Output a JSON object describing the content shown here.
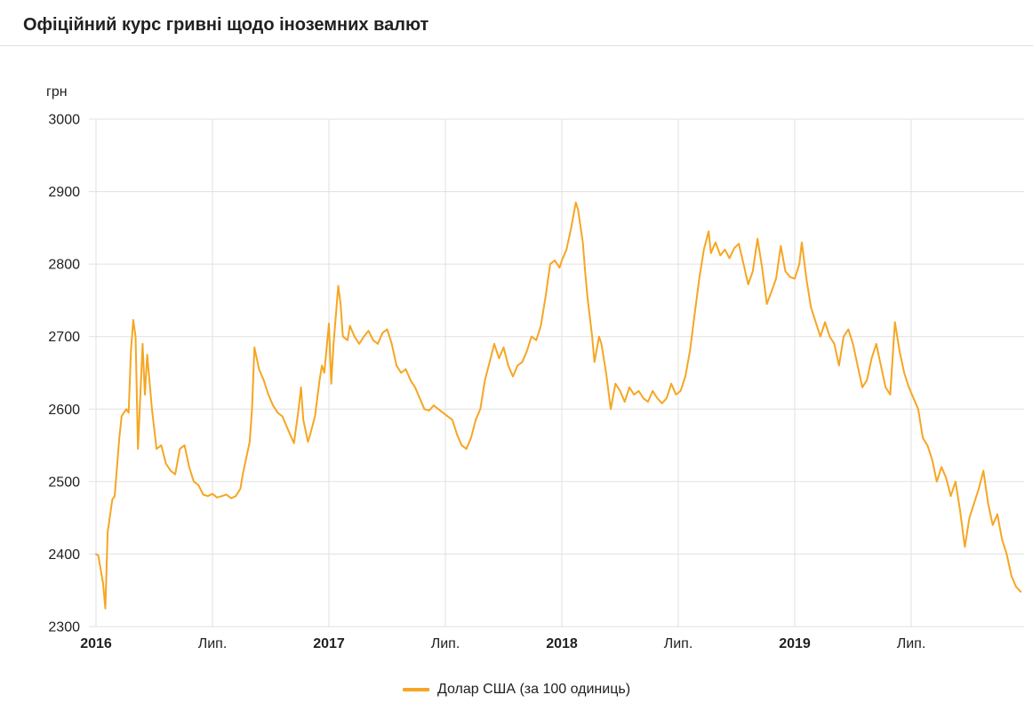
{
  "header": {
    "title": "Офіційний курс гривні щодо іноземних валют"
  },
  "chart_data": {
    "type": "line",
    "title": "Офіційний курс гривні щодо іноземних валют",
    "ylabel": "грн",
    "xlabel": "",
    "ylim": [
      2300,
      3000
    ],
    "xlim": [
      2016,
      2019.97
    ],
    "grid": true,
    "legend_position": "bottom",
    "colors": {
      "grid": "#e0e0e0",
      "axis_text": "#212121",
      "line": "#F6A623"
    },
    "y_ticks": [
      2300,
      2400,
      2500,
      2600,
      2700,
      2800,
      2900,
      3000
    ],
    "x_ticks": [
      {
        "x": 2016,
        "label": "2016",
        "bold": true
      },
      {
        "x": 2016.5,
        "label": "Лип.",
        "bold": false
      },
      {
        "x": 2017,
        "label": "2017",
        "bold": true
      },
      {
        "x": 2017.5,
        "label": "Лип.",
        "bold": false
      },
      {
        "x": 2018,
        "label": "2018",
        "bold": true
      },
      {
        "x": 2018.5,
        "label": "Лип.",
        "bold": false
      },
      {
        "x": 2019,
        "label": "2019",
        "bold": true
      },
      {
        "x": 2019.5,
        "label": "Лип.",
        "bold": false
      }
    ],
    "series": [
      {
        "name": "Долар США (за 100 одиниць)",
        "color": "#F6A623",
        "points": [
          [
            2016.0,
            2400
          ],
          [
            2016.01,
            2398
          ],
          [
            2016.03,
            2360
          ],
          [
            2016.04,
            2325
          ],
          [
            2016.05,
            2430
          ],
          [
            2016.07,
            2475
          ],
          [
            2016.08,
            2480
          ],
          [
            2016.1,
            2560
          ],
          [
            2016.11,
            2590
          ],
          [
            2016.13,
            2600
          ],
          [
            2016.14,
            2595
          ],
          [
            2016.15,
            2680
          ],
          [
            2016.16,
            2723
          ],
          [
            2016.17,
            2700
          ],
          [
            2016.18,
            2545
          ],
          [
            2016.2,
            2690
          ],
          [
            2016.21,
            2620
          ],
          [
            2016.22,
            2675
          ],
          [
            2016.24,
            2600
          ],
          [
            2016.26,
            2545
          ],
          [
            2016.28,
            2550
          ],
          [
            2016.3,
            2525
          ],
          [
            2016.32,
            2515
          ],
          [
            2016.34,
            2510
          ],
          [
            2016.36,
            2545
          ],
          [
            2016.38,
            2550
          ],
          [
            2016.4,
            2520
          ],
          [
            2016.42,
            2500
          ],
          [
            2016.44,
            2495
          ],
          [
            2016.46,
            2482
          ],
          [
            2016.48,
            2480
          ],
          [
            2016.5,
            2483
          ],
          [
            2016.52,
            2478
          ],
          [
            2016.54,
            2480
          ],
          [
            2016.56,
            2482
          ],
          [
            2016.58,
            2477
          ],
          [
            2016.6,
            2480
          ],
          [
            2016.62,
            2490
          ],
          [
            2016.63,
            2510
          ],
          [
            2016.65,
            2540
          ],
          [
            2016.66,
            2555
          ],
          [
            2016.67,
            2600
          ],
          [
            2016.68,
            2685
          ],
          [
            2016.69,
            2670
          ],
          [
            2016.7,
            2655
          ],
          [
            2016.72,
            2640
          ],
          [
            2016.74,
            2620
          ],
          [
            2016.76,
            2605
          ],
          [
            2016.78,
            2595
          ],
          [
            2016.8,
            2590
          ],
          [
            2016.82,
            2575
          ],
          [
            2016.84,
            2560
          ],
          [
            2016.85,
            2553
          ],
          [
            2016.87,
            2600
          ],
          [
            2016.88,
            2630
          ],
          [
            2016.89,
            2585
          ],
          [
            2016.91,
            2555
          ],
          [
            2016.92,
            2565
          ],
          [
            2016.94,
            2590
          ],
          [
            2016.96,
            2640
          ],
          [
            2016.97,
            2660
          ],
          [
            2016.98,
            2650
          ],
          [
            2017.0,
            2718
          ],
          [
            2017.01,
            2635
          ],
          [
            2017.02,
            2690
          ],
          [
            2017.04,
            2770
          ],
          [
            2017.05,
            2745
          ],
          [
            2017.06,
            2700
          ],
          [
            2017.08,
            2695
          ],
          [
            2017.09,
            2715
          ],
          [
            2017.11,
            2700
          ],
          [
            2017.13,
            2690
          ],
          [
            2017.15,
            2700
          ],
          [
            2017.17,
            2708
          ],
          [
            2017.19,
            2695
          ],
          [
            2017.21,
            2690
          ],
          [
            2017.23,
            2705
          ],
          [
            2017.25,
            2710
          ],
          [
            2017.27,
            2690
          ],
          [
            2017.29,
            2660
          ],
          [
            2017.31,
            2650
          ],
          [
            2017.33,
            2655
          ],
          [
            2017.35,
            2640
          ],
          [
            2017.37,
            2630
          ],
          [
            2017.39,
            2615
          ],
          [
            2017.41,
            2600
          ],
          [
            2017.43,
            2598
          ],
          [
            2017.45,
            2605
          ],
          [
            2017.47,
            2600
          ],
          [
            2017.49,
            2595
          ],
          [
            2017.51,
            2590
          ],
          [
            2017.53,
            2585
          ],
          [
            2017.55,
            2565
          ],
          [
            2017.57,
            2550
          ],
          [
            2017.59,
            2545
          ],
          [
            2017.61,
            2560
          ],
          [
            2017.63,
            2585
          ],
          [
            2017.65,
            2600
          ],
          [
            2017.67,
            2640
          ],
          [
            2017.69,
            2665
          ],
          [
            2017.71,
            2690
          ],
          [
            2017.73,
            2670
          ],
          [
            2017.75,
            2685
          ],
          [
            2017.77,
            2660
          ],
          [
            2017.79,
            2645
          ],
          [
            2017.81,
            2660
          ],
          [
            2017.83,
            2665
          ],
          [
            2017.85,
            2680
          ],
          [
            2017.87,
            2700
          ],
          [
            2017.89,
            2695
          ],
          [
            2017.91,
            2715
          ],
          [
            2017.93,
            2755
          ],
          [
            2017.95,
            2800
          ],
          [
            2017.97,
            2805
          ],
          [
            2017.99,
            2795
          ],
          [
            2018.0,
            2805
          ],
          [
            2018.02,
            2820
          ],
          [
            2018.04,
            2850
          ],
          [
            2018.06,
            2885
          ],
          [
            2018.07,
            2875
          ],
          [
            2018.09,
            2830
          ],
          [
            2018.1,
            2790
          ],
          [
            2018.11,
            2755
          ],
          [
            2018.13,
            2700
          ],
          [
            2018.14,
            2665
          ],
          [
            2018.16,
            2700
          ],
          [
            2018.17,
            2690
          ],
          [
            2018.19,
            2650
          ],
          [
            2018.21,
            2600
          ],
          [
            2018.23,
            2635
          ],
          [
            2018.25,
            2625
          ],
          [
            2018.27,
            2610
          ],
          [
            2018.29,
            2630
          ],
          [
            2018.31,
            2620
          ],
          [
            2018.33,
            2625
          ],
          [
            2018.35,
            2615
          ],
          [
            2018.37,
            2610
          ],
          [
            2018.39,
            2625
          ],
          [
            2018.41,
            2615
          ],
          [
            2018.43,
            2608
          ],
          [
            2018.45,
            2615
          ],
          [
            2018.47,
            2635
          ],
          [
            2018.49,
            2620
          ],
          [
            2018.51,
            2625
          ],
          [
            2018.53,
            2645
          ],
          [
            2018.55,
            2680
          ],
          [
            2018.57,
            2730
          ],
          [
            2018.59,
            2780
          ],
          [
            2018.61,
            2820
          ],
          [
            2018.63,
            2845
          ],
          [
            2018.64,
            2815
          ],
          [
            2018.66,
            2830
          ],
          [
            2018.68,
            2812
          ],
          [
            2018.7,
            2820
          ],
          [
            2018.72,
            2808
          ],
          [
            2018.74,
            2822
          ],
          [
            2018.76,
            2828
          ],
          [
            2018.78,
            2800
          ],
          [
            2018.8,
            2772
          ],
          [
            2018.82,
            2790
          ],
          [
            2018.84,
            2835
          ],
          [
            2018.86,
            2795
          ],
          [
            2018.88,
            2745
          ],
          [
            2018.9,
            2762
          ],
          [
            2018.92,
            2780
          ],
          [
            2018.94,
            2825
          ],
          [
            2018.96,
            2790
          ],
          [
            2018.98,
            2782
          ],
          [
            2019.0,
            2780
          ],
          [
            2019.02,
            2800
          ],
          [
            2019.03,
            2830
          ],
          [
            2019.05,
            2780
          ],
          [
            2019.07,
            2740
          ],
          [
            2019.09,
            2720
          ],
          [
            2019.11,
            2700
          ],
          [
            2019.13,
            2720
          ],
          [
            2019.15,
            2700
          ],
          [
            2019.17,
            2690
          ],
          [
            2019.19,
            2660
          ],
          [
            2019.21,
            2700
          ],
          [
            2019.23,
            2710
          ],
          [
            2019.25,
            2690
          ],
          [
            2019.27,
            2660
          ],
          [
            2019.29,
            2630
          ],
          [
            2019.31,
            2640
          ],
          [
            2019.33,
            2670
          ],
          [
            2019.35,
            2690
          ],
          [
            2019.37,
            2660
          ],
          [
            2019.39,
            2630
          ],
          [
            2019.41,
            2620
          ],
          [
            2019.43,
            2720
          ],
          [
            2019.45,
            2680
          ],
          [
            2019.47,
            2650
          ],
          [
            2019.49,
            2630
          ],
          [
            2019.51,
            2615
          ],
          [
            2019.53,
            2600
          ],
          [
            2019.55,
            2560
          ],
          [
            2019.57,
            2550
          ],
          [
            2019.59,
            2530
          ],
          [
            2019.61,
            2500
          ],
          [
            2019.63,
            2520
          ],
          [
            2019.65,
            2505
          ],
          [
            2019.67,
            2480
          ],
          [
            2019.69,
            2500
          ],
          [
            2019.71,
            2460
          ],
          [
            2019.73,
            2410
          ],
          [
            2019.75,
            2450
          ],
          [
            2019.77,
            2470
          ],
          [
            2019.79,
            2490
          ],
          [
            2019.81,
            2515
          ],
          [
            2019.83,
            2470
          ],
          [
            2019.85,
            2440
          ],
          [
            2019.87,
            2455
          ],
          [
            2019.89,
            2420
          ],
          [
            2019.91,
            2400
          ],
          [
            2019.93,
            2370
          ],
          [
            2019.95,
            2355
          ],
          [
            2019.97,
            2348
          ]
        ]
      }
    ]
  },
  "legend": {
    "label": "Долар США (за 100 одиниць)"
  }
}
